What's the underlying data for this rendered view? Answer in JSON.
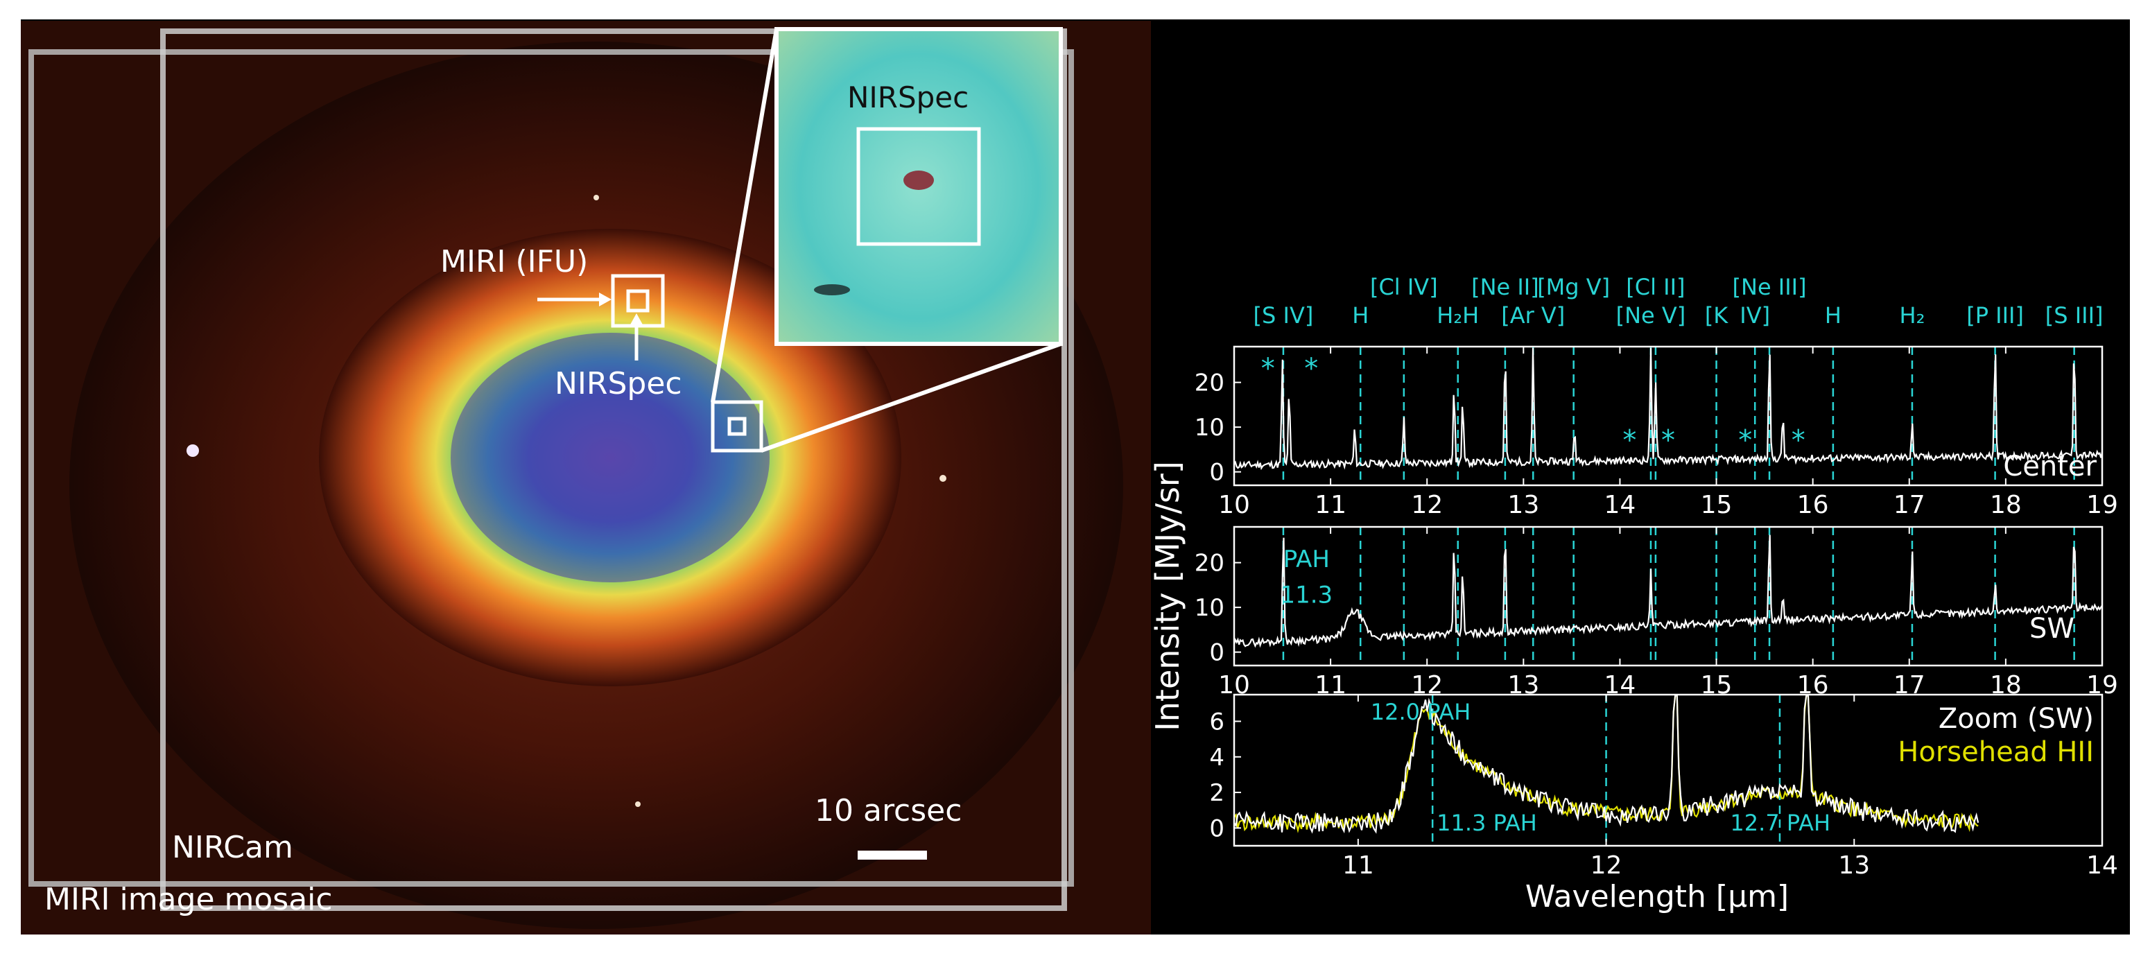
{
  "image_panel": {
    "miri_ifu_label": "MIRI (IFU)",
    "nirspec_label": "NIRSpec",
    "inset_label": "NIRSpec",
    "scale_label": "10 arcsec",
    "nircam_label": "NIRCam",
    "mosaic_label": "MIRI image mosaic"
  },
  "colors": {
    "cyan": "#2ad4d4",
    "spectrum": "#ffffff",
    "horsehead": "#e0e000",
    "grey": "#9a9a9a"
  },
  "chart_data": [
    {
      "type": "line",
      "panel": "Center",
      "label": "Center",
      "xlim": [
        10,
        19
      ],
      "ylim": [
        -3,
        28
      ],
      "xticks": [
        "10",
        "11",
        "12",
        "13",
        "14",
        "15",
        "16",
        "17",
        "18",
        "19"
      ],
      "yticks": [
        "0",
        "10",
        "20"
      ],
      "ylabel": "Intensity [MJy/sr]",
      "baseline": 1.5,
      "lines": [
        {
          "x": 10.5,
          "h": 24
        },
        {
          "x": 10.57,
          "h": 17
        },
        {
          "x": 11.25,
          "h": 8
        },
        {
          "x": 11.76,
          "h": 10
        },
        {
          "x": 12.28,
          "h": 18
        },
        {
          "x": 12.37,
          "h": 14
        },
        {
          "x": 12.81,
          "h": 25
        },
        {
          "x": 13.1,
          "h": 26
        },
        {
          "x": 13.53,
          "h": 7
        },
        {
          "x": 14.32,
          "h": 27
        },
        {
          "x": 14.37,
          "h": 18
        },
        {
          "x": 15.55,
          "h": 27
        },
        {
          "x": 15.69,
          "h": 10
        },
        {
          "x": 17.03,
          "h": 8
        },
        {
          "x": 17.89,
          "h": 26
        },
        {
          "x": 18.71,
          "h": 25
        }
      ],
      "markers": [
        10.35,
        10.8,
        14.1,
        14.5,
        15.3,
        15.85
      ],
      "marker_symbol": "*"
    },
    {
      "type": "line",
      "panel": "SW",
      "label": "SW",
      "xlim": [
        10,
        19
      ],
      "ylim": [
        -3,
        28
      ],
      "xticks": [
        "10",
        "11",
        "12",
        "13",
        "14",
        "15",
        "16",
        "17",
        "18",
        "19"
      ],
      "yticks": [
        "0",
        "10",
        "20"
      ],
      "annotation": [
        "PAH",
        "11.3"
      ],
      "lines": [
        {
          "x": 10.51,
          "h": 26
        },
        {
          "x": 12.28,
          "h": 21
        },
        {
          "x": 12.37,
          "h": 14
        },
        {
          "x": 12.81,
          "h": 23
        },
        {
          "x": 14.32,
          "h": 12
        },
        {
          "x": 15.55,
          "h": 21
        },
        {
          "x": 15.69,
          "h": 5
        },
        {
          "x": 17.03,
          "h": 15
        },
        {
          "x": 17.89,
          "h": 6
        },
        {
          "x": 18.71,
          "h": 17
        }
      ]
    },
    {
      "type": "line",
      "panel": "Zoom (SW)",
      "xlim": [
        10.5,
        14
      ],
      "ylim": [
        -1,
        7.5
      ],
      "xticks": [
        "11",
        "12",
        "13",
        "14"
      ],
      "yticks": [
        "0",
        "2",
        "4",
        "6"
      ],
      "xlabel": "Wavelength [μm]",
      "series": [
        {
          "name": "Zoom (SW)",
          "color": "#ffffff"
        },
        {
          "name": "Horsehead HII",
          "color": "#e0e000"
        }
      ],
      "pah_features": [
        11.3,
        12.0,
        12.7
      ],
      "pah_labels": [
        "11.3 PAH",
        "12.0 PAH",
        "12.7 PAH"
      ]
    }
  ],
  "line_ids": [
    {
      "label": "[S IV]",
      "x": 10.51,
      "row": 1
    },
    {
      "label": "H",
      "x": 11.31,
      "row": 1
    },
    {
      "label": "[Cl IV]",
      "x": 11.76,
      "row": 0
    },
    {
      "label": "H₂H",
      "x": 12.32,
      "row": 1
    },
    {
      "label": "[Ne II]",
      "x": 12.81,
      "row": 0
    },
    {
      "label": "[Ar V]",
      "x": 13.1,
      "row": 1
    },
    {
      "label": "[Mg V]",
      "x": 13.52,
      "row": 0
    },
    {
      "label": "[Ne V]",
      "x": 14.32,
      "row": 1
    },
    {
      "label": "[Cl II]",
      "x": 14.37,
      "row": 0
    },
    {
      "label": "[K",
      "x": 15.0,
      "row": 1
    },
    {
      "label": "IV]",
      "x": 15.4,
      "row": 1
    },
    {
      "label": "[Ne III]",
      "x": 15.55,
      "row": 0
    },
    {
      "label": "H",
      "x": 16.21,
      "row": 1
    },
    {
      "label": "H₂",
      "x": 17.03,
      "row": 1
    },
    {
      "label": "[P III]",
      "x": 17.89,
      "row": 1
    },
    {
      "label": "[S III]",
      "x": 18.71,
      "row": 1
    }
  ]
}
